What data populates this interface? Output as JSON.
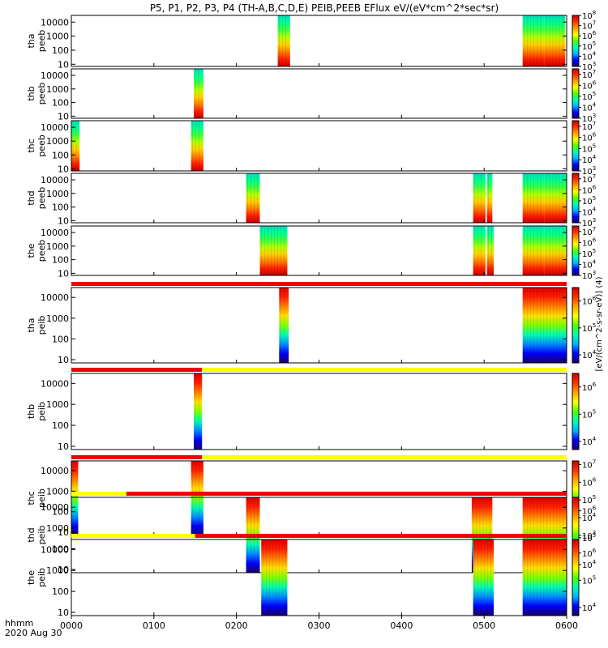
{
  "chart_data": {
    "type": "heatmap",
    "title": "P5, P1, P2, P3, P4 (TH-A,B,C,D,E) PEIB,PEEB EFlux eV/(eV*cm^2*sec*sr)",
    "x_axis": {
      "label_line1": "hhmm",
      "label_line2": "2020 Aug 30",
      "range_min": [
        0,
        360
      ],
      "ticks": [
        {
          "min": 0,
          "label": "0000"
        },
        {
          "min": 60,
          "label": "0100"
        },
        {
          "min": 120,
          "label": "0200"
        },
        {
          "min": 180,
          "label": "0300"
        },
        {
          "min": 240,
          "label": "0400"
        },
        {
          "min": 300,
          "label": "0500"
        },
        {
          "min": 360,
          "label": "0600"
        }
      ]
    },
    "y_axis": {
      "scale": "log",
      "range_eV": [
        7,
        30000
      ],
      "ticks": [
        {
          "value": 10,
          "label": "10"
        },
        {
          "value": 100,
          "label": "100"
        },
        {
          "value": 1000,
          "label": "1000"
        },
        {
          "value": 10000,
          "label": "10000"
        }
      ]
    },
    "colorbar_title": "[eV/(cm^2-s-sr-eV)] (4)",
    "colormap": [
      "#1a0066",
      "#0000ff",
      "#00b4ff",
      "#00ffb4",
      "#50ff00",
      "#ffff00",
      "#ffa000",
      "#ff3000",
      "#c80000"
    ],
    "panels": [
      {
        "ylabel": [
          "tha",
          "peeb"
        ],
        "cb_ticks": [
          "10^3",
          "10^4",
          "10^5",
          "10^6",
          "10^7",
          "10^8"
        ],
        "cb_range": [
          3,
          8
        ],
        "segments": [
          [
            150,
            159,
            "electron"
          ],
          [
            328,
            344,
            "electron"
          ],
          [
            344,
            359,
            "electron"
          ]
        ],
        "mode_bar": null
      },
      {
        "ylabel": [
          "thb",
          "peeb"
        ],
        "cb_ticks": [
          "10^3",
          "10^4",
          "10^5",
          "10^6",
          "10^7"
        ],
        "cb_range": [
          3,
          7.5
        ],
        "segments": [
          [
            89,
            96,
            "electron"
          ]
        ],
        "mode_bar": null
      },
      {
        "ylabel": [
          "thc",
          "peeb"
        ],
        "cb_ticks": [
          "10^3",
          "10^4",
          "10^5",
          "10^6",
          "10^7"
        ],
        "cb_range": [
          3,
          7.5
        ],
        "segments": [
          [
            0,
            6,
            "electron"
          ],
          [
            87,
            96,
            "electron"
          ]
        ],
        "mode_bar": null
      },
      {
        "ylabel": [
          "thd",
          "peeb"
        ],
        "cb_ticks": [
          "10^3",
          "10^4",
          "10^5",
          "10^6",
          "10^7"
        ],
        "cb_range": [
          3,
          7.5
        ],
        "segments": [
          [
            127,
            137,
            "electron"
          ],
          [
            292,
            301,
            "electron"
          ],
          [
            302,
            306,
            "electron"
          ],
          [
            328,
            344,
            "electron"
          ],
          [
            344,
            360,
            "electron"
          ]
        ],
        "mode_bar": null
      },
      {
        "ylabel": [
          "the",
          "peeb"
        ],
        "cb_ticks": [
          "10^3",
          "10^4",
          "10^5",
          "10^6",
          "10^7"
        ],
        "cb_range": [
          3,
          7.5
        ],
        "segments": [
          [
            137,
            157,
            "electron"
          ],
          [
            292,
            301,
            "electron"
          ],
          [
            302,
            307,
            "electron"
          ],
          [
            328,
            344,
            "electron"
          ],
          [
            344,
            360,
            "electron"
          ]
        ],
        "mode_bar": null
      },
      {
        "ylabel": [
          "tha",
          "peib"
        ],
        "cb_ticks": [
          "10^4",
          "10^5",
          "10^6"
        ],
        "cb_range": [
          3.7,
          6.5
        ],
        "segments": [
          [
            151,
            158,
            "ion"
          ],
          [
            328,
            360,
            "ion"
          ]
        ],
        "mode_bar": [
          [
            0,
            360,
            "red"
          ]
        ]
      },
      {
        "ylabel": [
          "thb",
          "peib"
        ],
        "cb_ticks": [
          "10^4",
          "10^5",
          "10^6"
        ],
        "cb_range": [
          3.7,
          6.5
        ],
        "segments": [
          [
            89,
            95,
            "ion"
          ]
        ],
        "mode_bar": [
          [
            0,
            95,
            "red"
          ],
          [
            95,
            360,
            "yellow"
          ]
        ]
      },
      {
        "ylabel": [
          "thc",
          "peib"
        ],
        "cb_ticks": [
          "10^3",
          "10^4",
          "10^5",
          "10^6",
          "10^7"
        ],
        "cb_range": [
          3,
          7.2
        ],
        "segments": [
          [
            0,
            5,
            "ion"
          ],
          [
            87,
            96,
            "ion"
          ]
        ],
        "mode_bar": [
          [
            0,
            95,
            "red"
          ],
          [
            95,
            360,
            "yellow"
          ]
        ]
      },
      {
        "ylabel": [
          "thd",
          "peib"
        ],
        "cb_ticks": [
          "10^4",
          "10^5",
          "10^6"
        ],
        "cb_range": [
          3.7,
          6.5
        ],
        "segments": [
          [
            127,
            137,
            "ion"
          ],
          [
            291,
            306,
            "ion"
          ],
          [
            328,
            360,
            "ion"
          ]
        ],
        "mode_bar": [
          [
            0,
            40,
            "yellow"
          ],
          [
            40,
            360,
            "red"
          ]
        ]
      },
      {
        "ylabel": [
          "the",
          "peib"
        ],
        "cb_ticks": [
          "10^4",
          "10^5",
          "10^6"
        ],
        "cb_range": [
          3.7,
          6.5
        ],
        "segments": [
          [
            138,
            157,
            "ion"
          ],
          [
            292,
            307,
            "ion"
          ],
          [
            328,
            360,
            "ion"
          ]
        ],
        "mode_bar": [
          [
            0,
            90,
            "yellow"
          ],
          [
            90,
            360,
            "red"
          ]
        ]
      }
    ]
  }
}
